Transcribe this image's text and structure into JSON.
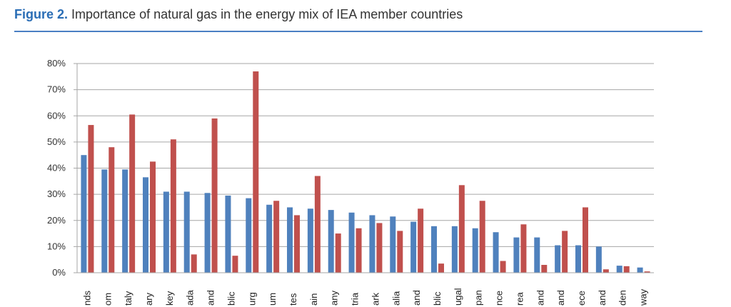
{
  "header": {
    "figure_label": "Figure 2.",
    "title_text": "Importance of natural gas in the energy mix of IEA member countries"
  },
  "colors": {
    "series_1": "#4f81bd",
    "series_2": "#c0504d",
    "grid": "#a6a6a6",
    "accent_rule": "#4a7fc4"
  },
  "chart_data": {
    "type": "bar",
    "title": "Importance of natural gas in the energy mix of IEA member countries",
    "xlabel": "",
    "ylabel": "",
    "ylim": [
      0,
      0.8
    ],
    "yticks": [
      0,
      0.1,
      0.2,
      0.3,
      0.4,
      0.5,
      0.6,
      0.7,
      0.8
    ],
    "ytick_labels": [
      "0%",
      "10%",
      "20%",
      "30%",
      "40%",
      "50%",
      "60%",
      "70%",
      "80%"
    ],
    "grid": true,
    "legend": "none",
    "categories": [
      "nds",
      "om",
      "taly",
      "ary",
      "key",
      "ada",
      "and",
      "blic",
      "urg",
      "um",
      "tes",
      "ain",
      "any",
      "tria",
      "ark",
      "alia",
      "and",
      "blic",
      "ugal",
      "pan",
      "nce",
      "rea",
      "and",
      "and",
      "ece",
      "and",
      "den",
      "way"
    ],
    "series": [
      {
        "values": [
          0.45,
          0.395,
          0.395,
          0.365,
          0.31,
          0.31,
          0.305,
          0.295,
          0.285,
          0.26,
          0.25,
          0.245,
          0.24,
          0.23,
          0.22,
          0.215,
          0.195,
          0.178,
          0.178,
          0.17,
          0.155,
          0.135,
          0.135,
          0.105,
          0.105,
          0.1,
          0.027,
          0.02
        ]
      },
      {
        "values": [
          0.565,
          0.48,
          0.605,
          0.425,
          0.51,
          0.07,
          0.59,
          0.065,
          0.77,
          0.275,
          0.22,
          0.37,
          0.15,
          0.17,
          0.19,
          0.16,
          0.245,
          0.035,
          0.335,
          0.275,
          0.045,
          0.185,
          0.03,
          0.16,
          0.25,
          0.013,
          0.025,
          0.005
        ]
      }
    ]
  }
}
